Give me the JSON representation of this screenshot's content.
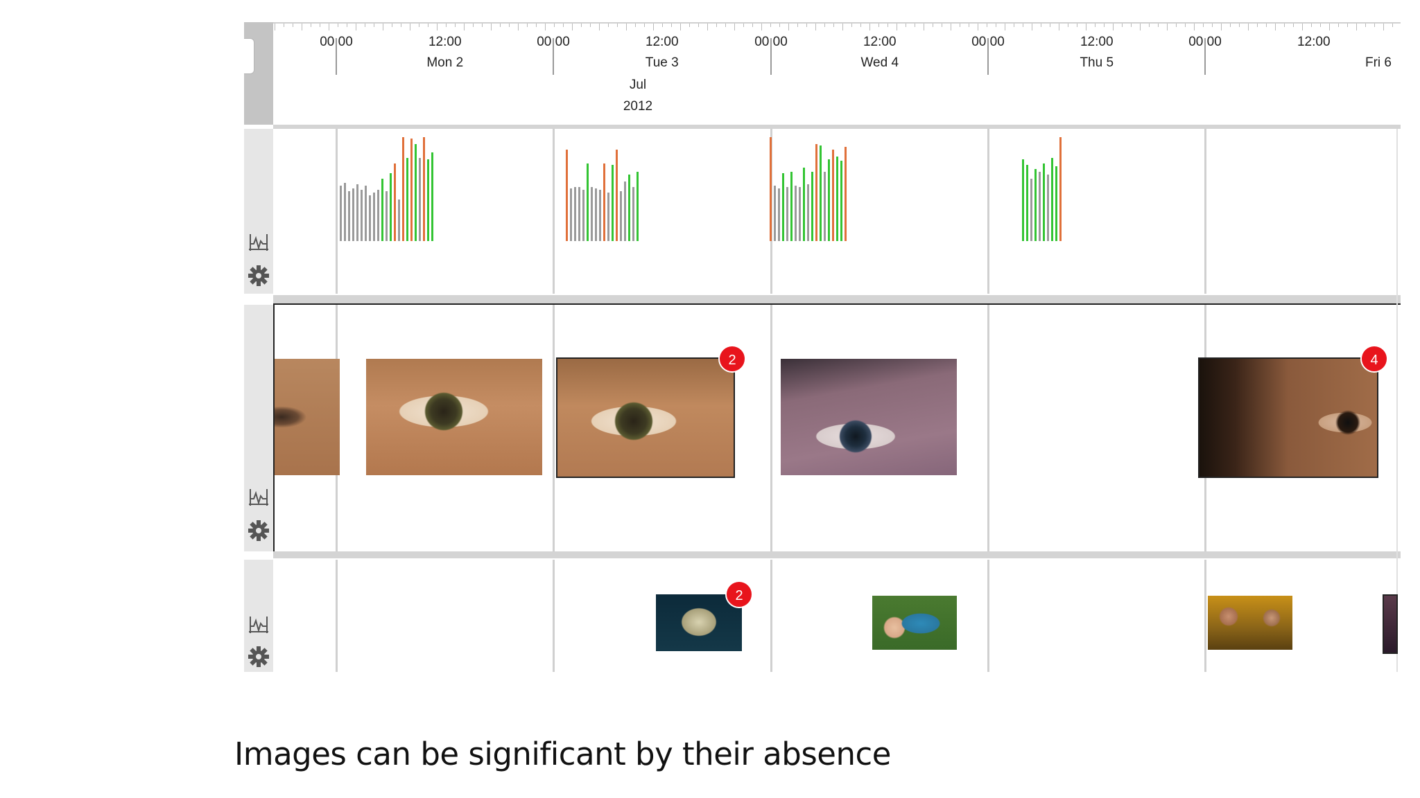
{
  "timeline": {
    "ticks": [
      "00:00",
      "12:00",
      "00:00",
      "12:00",
      "00:00",
      "12:00",
      "00:00",
      "12:00",
      "00:00",
      "12:00"
    ],
    "days": [
      "Mon 2",
      "Tue 3",
      "Wed 4",
      "Thu 5",
      "Fri 6"
    ],
    "month": "Jul",
    "year": "2012"
  },
  "tracks": [
    {
      "name": "activity-track",
      "type": "bars"
    },
    {
      "name": "eye-photos-track",
      "badges": [
        "2",
        "4"
      ]
    },
    {
      "name": "misc-photos-track",
      "badges": [
        "2"
      ]
    }
  ],
  "colors": {
    "gray": "#9a9a9a",
    "green": "#33c433",
    "orange": "#e0703a",
    "badge": "#e8141c"
  },
  "icons": {
    "scale": "waveform-scale-icon",
    "settings": "gear-icon"
  },
  "caption": "Images can be significant by their absence"
}
